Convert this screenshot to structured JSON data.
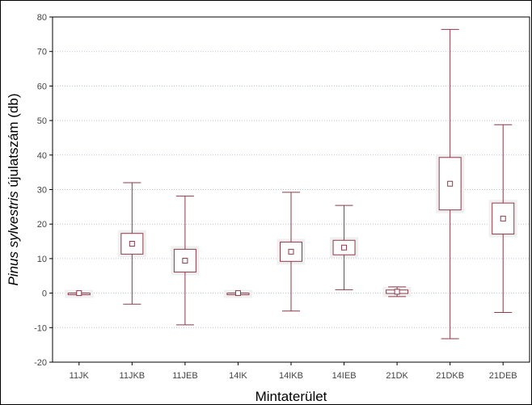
{
  "chart_data": {
    "type": "boxplot",
    "xlabel": "Mintaterület",
    "ylabel_italic": "Pinus sylvestris",
    "ylabel_rest": " újulatszám (db)",
    "ylim": [
      -20,
      80
    ],
    "yticks": [
      -20,
      -10,
      0,
      10,
      20,
      30,
      40,
      50,
      60,
      70,
      80
    ],
    "grid": "horizontal-dotted",
    "colors": {
      "box": "#8b3a4a",
      "grid": "#b8c4d4",
      "plot_border": "#000000"
    },
    "categories": [
      "11JK",
      "11JKB",
      "11JEB",
      "14IK",
      "14IKB",
      "14IEB",
      "21DK",
      "21DKB",
      "21DEB"
    ],
    "series": [
      {
        "category": "11JK",
        "mean": 0,
        "box_low": 0,
        "box_high": 0,
        "whisker_low": 0,
        "whisker_high": 0
      },
      {
        "category": "11JKB",
        "mean": 14.3,
        "box_low": 11.3,
        "box_high": 17.3,
        "whisker_low": -3.2,
        "whisker_high": 32
      },
      {
        "category": "11JEB",
        "mean": 9.4,
        "box_low": 6.1,
        "box_high": 12.7,
        "whisker_low": -9.2,
        "whisker_high": 28.1
      },
      {
        "category": "14IK",
        "mean": 0,
        "box_low": 0,
        "box_high": 0,
        "whisker_low": 0,
        "whisker_high": 0
      },
      {
        "category": "14IKB",
        "mean": 12,
        "box_low": 9.2,
        "box_high": 14.8,
        "whisker_low": -5.2,
        "whisker_high": 29.2
      },
      {
        "category": "14IEB",
        "mean": 13.2,
        "box_low": 11.1,
        "box_high": 15.3,
        "whisker_low": 1,
        "whisker_high": 25.4
      },
      {
        "category": "21DK",
        "mean": 0.4,
        "box_low": -0.1,
        "box_high": 0.9,
        "whisker_low": -1,
        "whisker_high": 1.8
      },
      {
        "category": "21DKB",
        "mean": 31.7,
        "box_low": 24.1,
        "box_high": 39.3,
        "whisker_low": -13.2,
        "whisker_high": 76.4
      },
      {
        "category": "21DEB",
        "mean": 21.6,
        "box_low": 17.1,
        "box_high": 26.1,
        "whisker_low": -5.6,
        "whisker_high": 48.8
      }
    ]
  }
}
